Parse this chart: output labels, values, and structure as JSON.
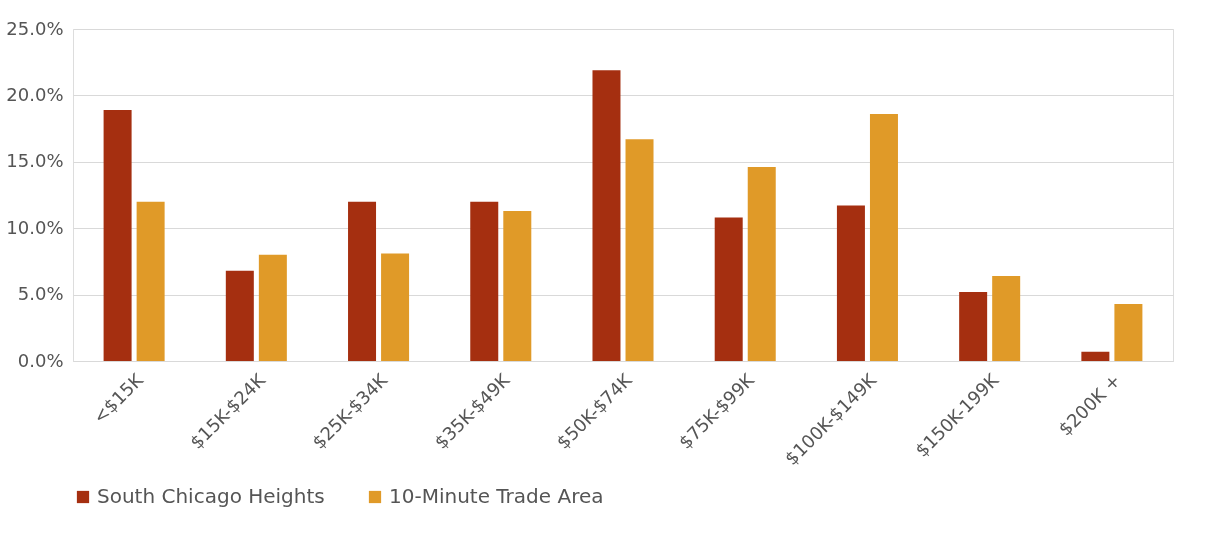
{
  "chart_data": {
    "type": "bar",
    "categories": [
      "<$15K",
      "$15K-$24K",
      "$25K-$34K",
      "$35K-$49K",
      "$50K-$74K",
      "$75K-$99K",
      "$100K-$149K",
      "$150K-199K",
      "$200K +"
    ],
    "series": [
      {
        "name": "South Chicago Heights",
        "color": "#a52f10",
        "values": [
          18.9,
          6.8,
          12.0,
          12.0,
          21.9,
          10.8,
          11.7,
          5.2,
          0.7
        ]
      },
      {
        "name": "10-Minute Trade Area",
        "color": "#e09a28",
        "values": [
          12.0,
          8.0,
          8.1,
          11.3,
          16.7,
          14.6,
          18.6,
          6.4,
          4.3
        ]
      }
    ],
    "ylim": [
      0,
      25
    ],
    "yticks": [
      {
        "value": 0,
        "label": "0.0%"
      },
      {
        "value": 5,
        "label": "5.0%"
      },
      {
        "value": 10,
        "label": "10.0%"
      },
      {
        "value": 15,
        "label": "15.0%"
      },
      {
        "value": 20,
        "label": "20.0%"
      },
      {
        "value": 25,
        "label": "25.0%"
      }
    ],
    "grid": "y",
    "legend": "bottom"
  }
}
